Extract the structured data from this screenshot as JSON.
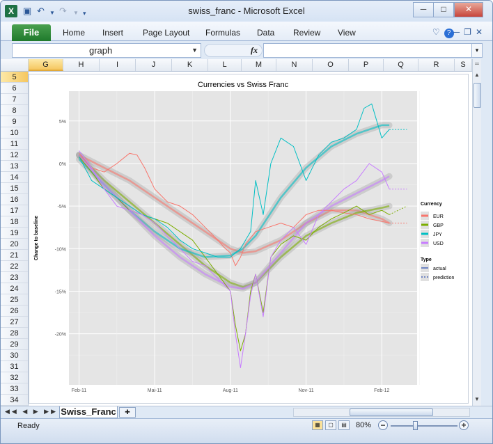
{
  "window": {
    "title": "swiss_franc  -  Microsoft Excel",
    "minimize": "─",
    "maximize": "□",
    "close": "✕"
  },
  "quick_access": {
    "undo": "↶",
    "redo": "↷"
  },
  "ribbon": {
    "file_tab": "File",
    "tabs": [
      "Home",
      "Insert",
      "Page Layout",
      "Formulas",
      "Data",
      "Review",
      "View"
    ]
  },
  "formula_bar": {
    "name_box": "graph",
    "fx": "fx",
    "formula": ""
  },
  "columns": [
    "G",
    "H",
    "I",
    "J",
    "K",
    "L",
    "M",
    "N",
    "O",
    "P",
    "Q",
    "R",
    "S"
  ],
  "selected_column": "G",
  "rows": [
    "5",
    "6",
    "7",
    "8",
    "9",
    "10",
    "11",
    "12",
    "13",
    "14",
    "15",
    "16",
    "17",
    "18",
    "19",
    "20",
    "21",
    "22",
    "23",
    "24",
    "25",
    "26",
    "27",
    "28",
    "29",
    "30",
    "31",
    "32",
    "33",
    "34"
  ],
  "selected_row": "5",
  "sheet_tabs": [
    "Swiss_Franc"
  ],
  "status": {
    "ready": "Ready",
    "zoom": "80%"
  },
  "chart_data": {
    "type": "line",
    "title": "Currencies vs Swiss Franc",
    "ylabel": "Change to baseline",
    "xlabel": "",
    "x_ticks": [
      "Feb-11",
      "Mai-11",
      "Aug-11",
      "Nov-11",
      "Feb-12"
    ],
    "y_ticks": [
      "5%",
      "0%",
      "-5%",
      "-10%",
      "-15%",
      "-20%"
    ],
    "ylim": [
      -0.26,
      0.085
    ],
    "x_unit": "months since Feb-11",
    "xlim": [
      -0.4,
      13.4
    ],
    "legend_placement": "right",
    "legend": {
      "currency_title": "Currency",
      "type_title": "Type",
      "types": [
        "actual",
        "prediction"
      ]
    },
    "grid": true,
    "series": [
      {
        "name": "EUR",
        "color": "#f8766d",
        "actual": [
          [
            0,
            0.012
          ],
          [
            0.5,
            -0.005
          ],
          [
            1,
            -0.01
          ],
          [
            1.5,
            0.0
          ],
          [
            2,
            0.012
          ],
          [
            2.3,
            0.01
          ],
          [
            2.6,
            -0.005
          ],
          [
            3,
            -0.03
          ],
          [
            3.5,
            -0.045
          ],
          [
            4,
            -0.05
          ],
          [
            4.5,
            -0.06
          ],
          [
            5,
            -0.075
          ],
          [
            5.5,
            -0.09
          ],
          [
            5.8,
            -0.1
          ],
          [
            6,
            -0.105
          ],
          [
            6.2,
            -0.12
          ],
          [
            6.4,
            -0.11
          ],
          [
            6.6,
            -0.095
          ],
          [
            7,
            -0.08
          ],
          [
            7.5,
            -0.075
          ],
          [
            8,
            -0.07
          ],
          [
            8.5,
            -0.075
          ],
          [
            9,
            -0.06
          ],
          [
            9.5,
            -0.055
          ],
          [
            10,
            -0.055
          ],
          [
            10.5,
            -0.058
          ],
          [
            11,
            -0.06
          ],
          [
            11.5,
            -0.065
          ],
          [
            12,
            -0.068
          ],
          [
            12.3,
            -0.07
          ]
        ],
        "prediction": [
          [
            12.3,
            -0.07
          ],
          [
            13,
            -0.07
          ]
        ],
        "trend": [
          [
            0,
            0.01
          ],
          [
            1,
            -0.005
          ],
          [
            2,
            -0.02
          ],
          [
            3,
            -0.04
          ],
          [
            4,
            -0.06
          ],
          [
            5,
            -0.08
          ],
          [
            6,
            -0.1
          ],
          [
            6.5,
            -0.105
          ],
          [
            7,
            -0.103
          ],
          [
            8,
            -0.09
          ],
          [
            9,
            -0.07
          ],
          [
            10,
            -0.055
          ],
          [
            11,
            -0.055
          ],
          [
            12,
            -0.065
          ],
          [
            12.3,
            -0.07
          ]
        ]
      },
      {
        "name": "GBP",
        "color": "#7cae00",
        "actual": [
          [
            0,
            0.008
          ],
          [
            0.5,
            -0.01
          ],
          [
            1,
            -0.03
          ],
          [
            1.5,
            -0.04
          ],
          [
            2,
            -0.055
          ],
          [
            2.5,
            -0.06
          ],
          [
            3,
            -0.065
          ],
          [
            3.5,
            -0.07
          ],
          [
            4,
            -0.08
          ],
          [
            4.5,
            -0.09
          ],
          [
            5,
            -0.11
          ],
          [
            5.5,
            -0.13
          ],
          [
            6,
            -0.15
          ],
          [
            6.2,
            -0.19
          ],
          [
            6.4,
            -0.22
          ],
          [
            6.6,
            -0.2
          ],
          [
            6.8,
            -0.15
          ],
          [
            7,
            -0.13
          ],
          [
            7.3,
            -0.175
          ],
          [
            7.6,
            -0.11
          ],
          [
            8,
            -0.095
          ],
          [
            8.5,
            -0.085
          ],
          [
            9,
            -0.09
          ],
          [
            9.5,
            -0.075
          ],
          [
            10,
            -0.065
          ],
          [
            10.5,
            -0.058
          ],
          [
            11,
            -0.05
          ],
          [
            11.5,
            -0.06
          ],
          [
            12,
            -0.055
          ],
          [
            12.3,
            -0.06
          ]
        ],
        "prediction": [
          [
            12.3,
            -0.06
          ],
          [
            13,
            -0.05
          ]
        ],
        "trend": [
          [
            0,
            0.01
          ],
          [
            1,
            -0.02
          ],
          [
            2,
            -0.045
          ],
          [
            3,
            -0.07
          ],
          [
            4,
            -0.095
          ],
          [
            5,
            -0.12
          ],
          [
            6,
            -0.14
          ],
          [
            6.5,
            -0.145
          ],
          [
            7,
            -0.14
          ],
          [
            8,
            -0.11
          ],
          [
            9,
            -0.085
          ],
          [
            10,
            -0.07
          ],
          [
            11,
            -0.058
          ],
          [
            12,
            -0.052
          ],
          [
            12.3,
            -0.05
          ]
        ]
      },
      {
        "name": "JPY",
        "color": "#00bfc4",
        "actual": [
          [
            0,
            0.008
          ],
          [
            0.5,
            -0.02
          ],
          [
            1,
            -0.03
          ],
          [
            1.5,
            -0.04
          ],
          [
            2,
            -0.05
          ],
          [
            2.5,
            -0.06
          ],
          [
            3,
            -0.065
          ],
          [
            3.5,
            -0.075
          ],
          [
            4,
            -0.09
          ],
          [
            4.5,
            -0.1
          ],
          [
            5,
            -0.105
          ],
          [
            5.5,
            -0.11
          ],
          [
            6,
            -0.11
          ],
          [
            6.4,
            -0.1
          ],
          [
            6.8,
            -0.08
          ],
          [
            7,
            -0.02
          ],
          [
            7.3,
            -0.06
          ],
          [
            7.6,
            0.0
          ],
          [
            8,
            0.03
          ],
          [
            8.5,
            0.02
          ],
          [
            9,
            -0.02
          ],
          [
            9.5,
            0.01
          ],
          [
            10,
            0.025
          ],
          [
            10.5,
            0.03
          ],
          [
            11,
            0.04
          ],
          [
            11.3,
            0.065
          ],
          [
            11.6,
            0.07
          ],
          [
            12,
            0.03
          ],
          [
            12.3,
            0.04
          ]
        ],
        "prediction": [
          [
            12.3,
            0.04
          ],
          [
            13,
            0.04
          ]
        ],
        "trend": [
          [
            0,
            0.005
          ],
          [
            1,
            -0.025
          ],
          [
            2,
            -0.055
          ],
          [
            3,
            -0.08
          ],
          [
            4,
            -0.1
          ],
          [
            5,
            -0.11
          ],
          [
            6,
            -0.108
          ],
          [
            6.5,
            -0.1
          ],
          [
            7,
            -0.085
          ],
          [
            8,
            -0.04
          ],
          [
            9,
            -0.005
          ],
          [
            10,
            0.02
          ],
          [
            11,
            0.035
          ],
          [
            12,
            0.045
          ],
          [
            12.3,
            0.045
          ]
        ]
      },
      {
        "name": "USD",
        "color": "#c77cff",
        "actual": [
          [
            0,
            0.015
          ],
          [
            0.5,
            -0.005
          ],
          [
            1,
            -0.03
          ],
          [
            1.5,
            -0.05
          ],
          [
            2,
            -0.055
          ],
          [
            2.5,
            -0.06
          ],
          [
            3,
            -0.07
          ],
          [
            3.5,
            -0.085
          ],
          [
            4,
            -0.1
          ],
          [
            4.5,
            -0.115
          ],
          [
            5,
            -0.12
          ],
          [
            5.5,
            -0.135
          ],
          [
            6,
            -0.15
          ],
          [
            6.2,
            -0.2
          ],
          [
            6.4,
            -0.24
          ],
          [
            6.6,
            -0.2
          ],
          [
            6.8,
            -0.155
          ],
          [
            7,
            -0.13
          ],
          [
            7.3,
            -0.18
          ],
          [
            7.6,
            -0.11
          ],
          [
            8,
            -0.09
          ],
          [
            8.5,
            -0.075
          ],
          [
            9,
            -0.095
          ],
          [
            9.5,
            -0.06
          ],
          [
            10,
            -0.045
          ],
          [
            10.5,
            -0.03
          ],
          [
            11,
            -0.02
          ],
          [
            11.5,
            0.0
          ],
          [
            12,
            -0.01
          ],
          [
            12.3,
            -0.03
          ]
        ],
        "prediction": [
          [
            12.3,
            -0.03
          ],
          [
            13,
            -0.03
          ]
        ],
        "trend": [
          [
            0,
            0.01
          ],
          [
            1,
            -0.025
          ],
          [
            2,
            -0.055
          ],
          [
            3,
            -0.085
          ],
          [
            4,
            -0.11
          ],
          [
            5,
            -0.13
          ],
          [
            6,
            -0.145
          ],
          [
            6.5,
            -0.147
          ],
          [
            7,
            -0.14
          ],
          [
            8,
            -0.105
          ],
          [
            9,
            -0.07
          ],
          [
            10,
            -0.05
          ],
          [
            11,
            -0.035
          ],
          [
            12,
            -0.02
          ],
          [
            12.3,
            -0.015
          ]
        ]
      }
    ]
  }
}
